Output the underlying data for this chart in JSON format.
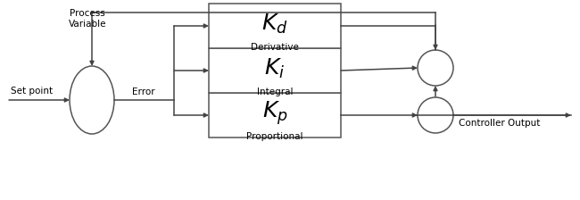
{
  "bg_color": "#ffffff",
  "line_color": "#444444",
  "box_edge_color": "#555555",
  "text_color": "#000000",
  "figsize": [
    6.5,
    2.24
  ],
  "dpi": 100,
  "labels": {
    "set_point": "Set point",
    "error": "Error",
    "process_variable": "Process\nVariable",
    "proportional": "Proportional",
    "integral": "Integral",
    "derivative": "Derivative",
    "kp": "$K_p$",
    "ki": "$K_i$",
    "kd": "$K_d$",
    "controller_output": "Controller Output"
  },
  "lw": 1.1
}
